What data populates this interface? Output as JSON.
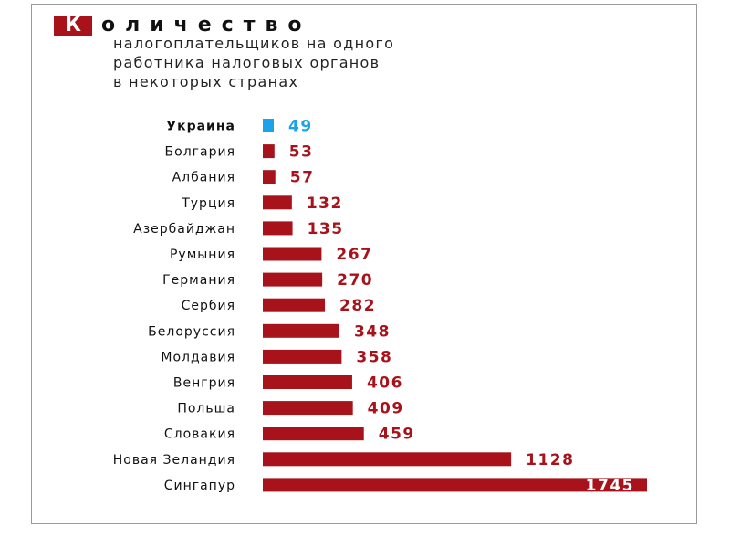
{
  "title": {
    "initial": "К",
    "rest": "оличество",
    "subtitle_lines": [
      "налогоплательщиков на одного",
      "работника налоговых органов",
      "в некоторых странах"
    ]
  },
  "colors": {
    "bar": "#a8131b",
    "highlight": "#1aa3e8",
    "label_text": "#111111",
    "value_text": "#a8131b",
    "value_inside_text": "#ffffff"
  },
  "chart_data": {
    "type": "bar",
    "orientation": "horizontal",
    "title": "Количество налогоплательщиков на одного работника налоговых органов в некоторых странах",
    "categories": [
      "Украина",
      "Болгария",
      "Албания",
      "Турция",
      "Азербайджан",
      "Румыния",
      "Германия",
      "Сербия",
      "Белоруссия",
      "Молдавия",
      "Венгрия",
      "Польша",
      "Словакия",
      "Новая Зеландия",
      "Сингапур"
    ],
    "values": [
      49,
      53,
      57,
      132,
      135,
      267,
      270,
      282,
      348,
      358,
      406,
      409,
      459,
      1128,
      1745
    ],
    "highlighted_category": "Украина",
    "xlim": [
      0,
      1745
    ],
    "xlabel": "",
    "ylabel": "",
    "grid": false,
    "legend": "none"
  }
}
